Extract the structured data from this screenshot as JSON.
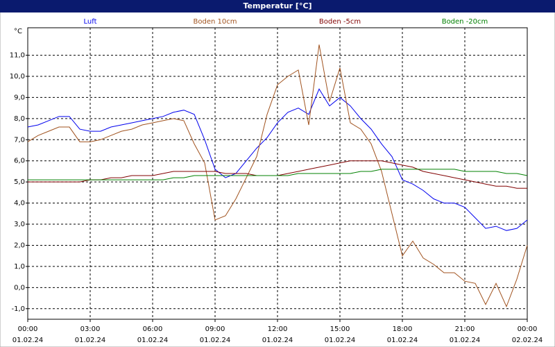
{
  "chart_data": {
    "type": "line",
    "title": "Temperatur [°C]",
    "ylabel": "°C",
    "x": [
      0,
      0.5,
      1,
      1.5,
      2,
      2.5,
      3,
      3.5,
      4,
      4.5,
      5,
      5.5,
      6,
      6.5,
      7,
      7.5,
      8,
      8.5,
      9,
      9.5,
      10,
      10.5,
      11,
      11.5,
      12,
      12.5,
      13,
      13.5,
      14,
      14.5,
      15,
      15.5,
      16,
      16.5,
      17,
      17.5,
      18,
      18.5,
      19,
      19.5,
      20,
      20.5,
      21,
      21.5,
      22,
      22.5,
      23,
      23.5,
      24
    ],
    "xlim": [
      0,
      24
    ],
    "xticks": [
      {
        "value": 0,
        "label": [
          "00:00",
          "01.02.24"
        ]
      },
      {
        "value": 3,
        "label": [
          "03:00",
          "01.02.24"
        ]
      },
      {
        "value": 6,
        "label": [
          "06:00",
          "01.02.24"
        ]
      },
      {
        "value": 9,
        "label": [
          "09:00",
          "01.02.24"
        ]
      },
      {
        "value": 12,
        "label": [
          "12:00",
          "01.02.24"
        ]
      },
      {
        "value": 15,
        "label": [
          "15:00",
          "01.02.24"
        ]
      },
      {
        "value": 18,
        "label": [
          "18:00",
          "01.02.24"
        ]
      },
      {
        "value": 21,
        "label": [
          "21:00",
          "01.02.24"
        ]
      },
      {
        "value": 24,
        "label": [
          "00:00",
          "02.02.24"
        ]
      }
    ],
    "ylim": [
      -1.5,
      12.3
    ],
    "yticks": [
      {
        "value": -1,
        "label": "-1,0"
      },
      {
        "value": 0,
        "label": "0,0"
      },
      {
        "value": 1,
        "label": "1,0"
      },
      {
        "value": 2,
        "label": "2,0"
      },
      {
        "value": 3,
        "label": "3,0"
      },
      {
        "value": 4,
        "label": "4,0"
      },
      {
        "value": 5,
        "label": "5,0"
      },
      {
        "value": 6,
        "label": "6,0"
      },
      {
        "value": 7,
        "label": "7,0"
      },
      {
        "value": 8,
        "label": "8,0"
      },
      {
        "value": 9,
        "label": "9,0"
      },
      {
        "value": 10,
        "label": "10,0"
      },
      {
        "value": 11,
        "label": "11,0"
      }
    ],
    "grid": true,
    "series": [
      {
        "name": "Luft",
        "color": "#0000ee",
        "values": [
          7.6,
          7.7,
          7.9,
          8.1,
          8.1,
          7.5,
          7.4,
          7.4,
          7.6,
          7.7,
          7.8,
          7.9,
          8.0,
          8.1,
          8.3,
          8.4,
          8.2,
          7.0,
          5.6,
          5.2,
          5.4,
          6.0,
          6.6,
          7.1,
          7.8,
          8.3,
          8.5,
          8.2,
          9.4,
          8.6,
          9.0,
          8.6,
          8.0,
          7.5,
          6.8,
          6.2,
          5.1,
          4.9,
          4.6,
          4.2,
          4.0,
          4.0,
          3.8,
          3.3,
          2.8,
          2.9,
          2.7,
          2.8,
          3.2
        ]
      },
      {
        "name": "Boden 10cm",
        "color": "#a0521e",
        "values": [
          6.9,
          7.2,
          7.4,
          7.6,
          7.6,
          6.9,
          6.9,
          7.0,
          7.2,
          7.4,
          7.5,
          7.7,
          7.8,
          7.9,
          8.0,
          7.9,
          6.8,
          5.9,
          3.2,
          3.4,
          4.2,
          5.2,
          6.2,
          8.2,
          9.6,
          10.0,
          10.3,
          7.7,
          11.5,
          8.8,
          10.4,
          7.8,
          7.5,
          6.8,
          5.5,
          3.5,
          1.5,
          2.2,
          1.4,
          1.1,
          0.7,
          0.7,
          0.3,
          0.2,
          -0.8,
          0.2,
          -0.9,
          0.4,
          2.0
        ]
      },
      {
        "name": "Boden -5cm",
        "color": "#800000",
        "values": [
          5.0,
          5.0,
          5.0,
          5.0,
          5.0,
          5.0,
          5.1,
          5.1,
          5.2,
          5.2,
          5.3,
          5.3,
          5.3,
          5.4,
          5.5,
          5.5,
          5.5,
          5.5,
          5.5,
          5.4,
          5.4,
          5.4,
          5.3,
          5.3,
          5.3,
          5.4,
          5.5,
          5.6,
          5.7,
          5.8,
          5.9,
          6.0,
          6.0,
          6.0,
          6.0,
          5.9,
          5.8,
          5.7,
          5.5,
          5.4,
          5.3,
          5.2,
          5.1,
          5.0,
          4.9,
          4.8,
          4.8,
          4.7,
          4.7
        ]
      },
      {
        "name": "Boden -20cm",
        "color": "#008000",
        "values": [
          5.1,
          5.1,
          5.1,
          5.1,
          5.1,
          5.1,
          5.1,
          5.1,
          5.1,
          5.1,
          5.1,
          5.1,
          5.1,
          5.1,
          5.2,
          5.2,
          5.3,
          5.3,
          5.3,
          5.3,
          5.3,
          5.3,
          5.3,
          5.3,
          5.3,
          5.3,
          5.4,
          5.4,
          5.4,
          5.4,
          5.4,
          5.4,
          5.5,
          5.5,
          5.6,
          5.6,
          5.6,
          5.6,
          5.6,
          5.6,
          5.6,
          5.6,
          5.5,
          5.5,
          5.5,
          5.5,
          5.4,
          5.4,
          5.3
        ]
      }
    ]
  }
}
